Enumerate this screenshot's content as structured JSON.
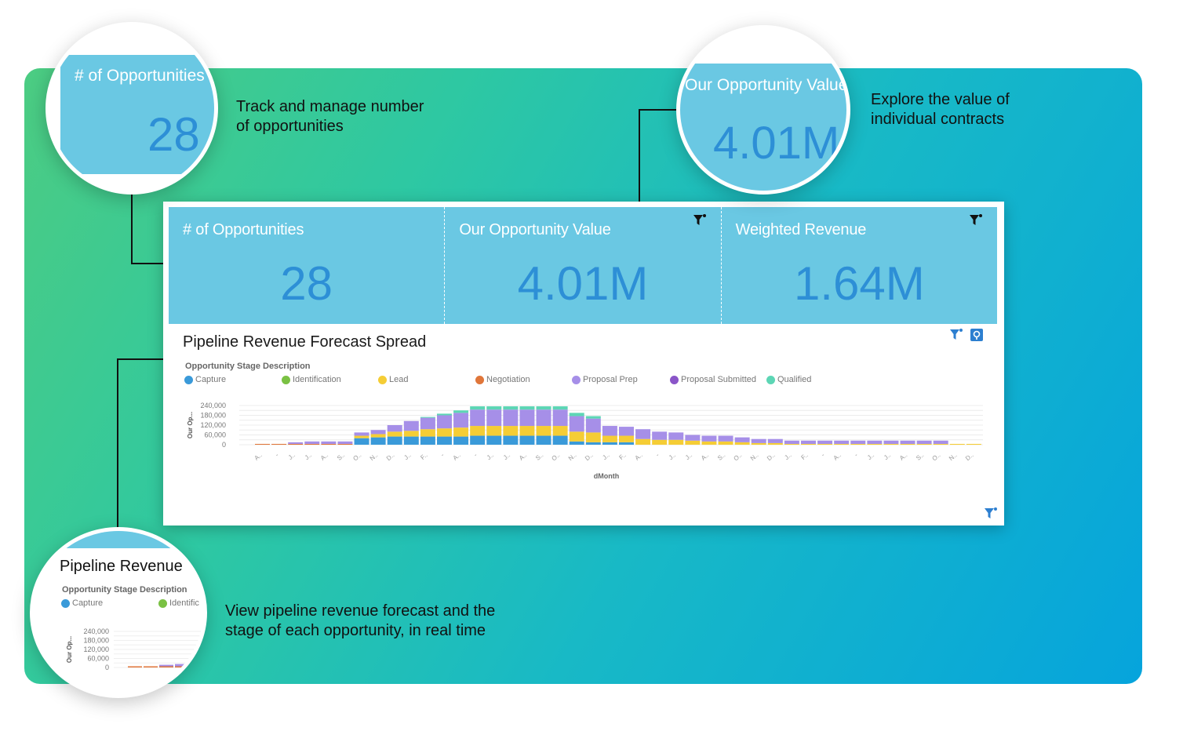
{
  "kpis": [
    {
      "title": "# of Opportunities",
      "value": "28",
      "filter_icon": "funnel-icon"
    },
    {
      "title": "Our Opportunity Value",
      "value": "4.01M",
      "filter_icon": "funnel-icon"
    },
    {
      "title": "Weighted Revenue",
      "value": "1.64M",
      "filter_icon": "funnel-icon"
    }
  ],
  "callouts": {
    "opportunities": [
      "Track and manage number",
      "of opportunities"
    ],
    "value": [
      "Explore the value of",
      "individual contracts"
    ],
    "pipeline": [
      "View pipeline revenue forecast and the",
      "stage of each opportunity, in real time"
    ]
  },
  "zoom": {
    "opportunities": {
      "title": "# of Opportunities",
      "value": "28"
    },
    "value": {
      "title": "Our Opportunity Value",
      "value": "4.01M"
    },
    "pipeline": {
      "title": "Pipeline Revenue",
      "legend_title": "Opportunity Stage Description",
      "legend": [
        "Capture",
        "Identific"
      ]
    }
  },
  "chart": {
    "title": "Pipeline Revenue Forecast Spread",
    "tool_icons": [
      "funnel-icon",
      "settings-icon"
    ]
  },
  "chart_data": {
    "type": "bar",
    "stacked": true,
    "legend_title": "Opportunity Stage Description",
    "xlabel": "dMonth",
    "ylabel": "Our Op...",
    "ylim": [
      0,
      240000
    ],
    "yticks": [
      "240,000",
      "180,000",
      "120,000",
      "60,000",
      "0"
    ],
    "colors": {
      "Capture": "#3a9ad9",
      "Identification": "#7ac143",
      "Lead": "#f5cd35",
      "Negotiation": "#e0763a",
      "Proposal Prep": "#a68fe8",
      "Proposal Submitted": "#8a55c8",
      "Qualified": "#5dd6b5"
    },
    "categories": [
      "A..",
      "-",
      "J..",
      "J..",
      "A..",
      "S..",
      "O..",
      "N..",
      "D..",
      "J..",
      "F..",
      "-",
      "A..",
      "-",
      "J..",
      "J..",
      "A..",
      "S..",
      "O..",
      "N..",
      "D..",
      "J..",
      "F..",
      "A..",
      "-",
      "J..",
      "J..",
      "A..",
      "S..",
      "O..",
      "N..",
      "D..",
      "J..",
      "F..",
      "-",
      "A..",
      "-",
      "J..",
      "J..",
      "A..",
      "S..",
      "O..",
      "N..",
      "D.."
    ],
    "series": [
      {
        "name": "Capture",
        "values": [
          0,
          0,
          0,
          0,
          0,
          0,
          40000,
          45000,
          50000,
          50000,
          50000,
          50000,
          50000,
          55000,
          55000,
          55000,
          55000,
          55000,
          55000,
          20000,
          15000,
          15000,
          15000,
          0,
          0,
          0,
          0,
          0,
          0,
          0,
          0,
          0,
          0,
          0,
          0,
          0,
          0,
          0,
          0,
          0,
          0,
          0,
          0,
          0
        ]
      },
      {
        "name": "Identification",
        "values": [
          0,
          0,
          0,
          0,
          0,
          0,
          0,
          0,
          0,
          0,
          0,
          0,
          0,
          0,
          0,
          0,
          0,
          0,
          0,
          0,
          0,
          0,
          0,
          0,
          0,
          0,
          0,
          0,
          0,
          0,
          0,
          0,
          0,
          0,
          0,
          0,
          0,
          0,
          0,
          0,
          0,
          0,
          0,
          0
        ]
      },
      {
        "name": "Lead",
        "values": [
          0,
          0,
          0,
          0,
          0,
          0,
          15000,
          20000,
          30000,
          35000,
          45000,
          50000,
          55000,
          60000,
          60000,
          60000,
          60000,
          60000,
          60000,
          60000,
          60000,
          40000,
          40000,
          35000,
          30000,
          30000,
          25000,
          20000,
          20000,
          15000,
          10000,
          10000,
          5000,
          5000,
          5000,
          5000,
          5000,
          5000,
          5000,
          5000,
          5000,
          5000,
          5000,
          5000
        ]
      },
      {
        "name": "Negotiation",
        "values": [
          5000,
          5000,
          5000,
          5000,
          5000,
          5000,
          0,
          0,
          0,
          0,
          0,
          0,
          0,
          0,
          0,
          0,
          0,
          0,
          0,
          0,
          0,
          0,
          0,
          0,
          0,
          0,
          0,
          0,
          0,
          0,
          0,
          0,
          0,
          0,
          0,
          0,
          0,
          0,
          0,
          0,
          0,
          0,
          0,
          0
        ]
      },
      {
        "name": "Proposal Prep",
        "values": [
          0,
          0,
          10000,
          15000,
          15000,
          15000,
          20000,
          25000,
          40000,
          60000,
          70000,
          80000,
          90000,
          100000,
          100000,
          100000,
          100000,
          100000,
          100000,
          95000,
          85000,
          60000,
          55000,
          60000,
          50000,
          45000,
          35000,
          35000,
          35000,
          30000,
          25000,
          25000,
          20000,
          20000,
          20000,
          20000,
          20000,
          20000,
          20000,
          20000,
          20000,
          20000,
          0,
          0
        ]
      },
      {
        "name": "Proposal Submitted",
        "values": [
          0,
          0,
          0,
          0,
          0,
          0,
          0,
          0,
          0,
          0,
          0,
          0,
          0,
          0,
          0,
          0,
          0,
          0,
          0,
          0,
          0,
          0,
          0,
          0,
          0,
          0,
          0,
          0,
          0,
          0,
          0,
          0,
          0,
          0,
          0,
          0,
          0,
          0,
          0,
          0,
          0,
          0,
          0,
          0
        ]
      },
      {
        "name": "Qualified",
        "values": [
          0,
          0,
          0,
          0,
          0,
          0,
          0,
          0,
          0,
          0,
          5000,
          10000,
          15000,
          20000,
          20000,
          20000,
          20000,
          20000,
          20000,
          20000,
          15000,
          0,
          0,
          0,
          0,
          0,
          0,
          0,
          0,
          0,
          0,
          0,
          0,
          0,
          0,
          0,
          0,
          0,
          0,
          0,
          0,
          0,
          0,
          0
        ]
      }
    ]
  }
}
